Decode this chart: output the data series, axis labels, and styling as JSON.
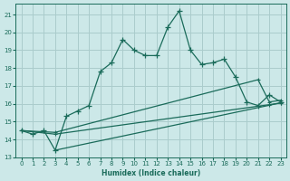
{
  "xlabel": "Humidex (Indice chaleur)",
  "bg_color": "#cce8e8",
  "grid_color": "#aacccc",
  "line_color": "#1a6b5a",
  "xlim": [
    -0.5,
    23.5
  ],
  "ylim": [
    13,
    21.6
  ],
  "yticks": [
    13,
    14,
    15,
    16,
    17,
    18,
    19,
    20,
    21
  ],
  "xticks": [
    0,
    1,
    2,
    3,
    4,
    5,
    6,
    7,
    8,
    9,
    10,
    11,
    12,
    13,
    14,
    15,
    16,
    17,
    18,
    19,
    20,
    21,
    22,
    23
  ],
  "line1_x": [
    0,
    1,
    2,
    3,
    4,
    5,
    6,
    7,
    8,
    9,
    10,
    11,
    12,
    13,
    14,
    15,
    16,
    17,
    18,
    19,
    20,
    21,
    22,
    23
  ],
  "line1_y": [
    14.5,
    14.3,
    14.5,
    13.4,
    15.3,
    15.6,
    15.9,
    17.8,
    18.3,
    19.6,
    19.0,
    18.7,
    18.7,
    20.3,
    21.2,
    19.0,
    18.2,
    18.3,
    18.5,
    17.5,
    16.1,
    15.9,
    16.5,
    16.1
  ],
  "line2_x": [
    0,
    3,
    21,
    22,
    23
  ],
  "line2_y": [
    14.5,
    14.4,
    17.35,
    16.1,
    16.2
  ],
  "line3_x": [
    0,
    3,
    22,
    23
  ],
  "line3_y": [
    14.5,
    14.3,
    15.95,
    16.05
  ],
  "line4_x": [
    3,
    23
  ],
  "line4_y": [
    13.4,
    16.05
  ]
}
